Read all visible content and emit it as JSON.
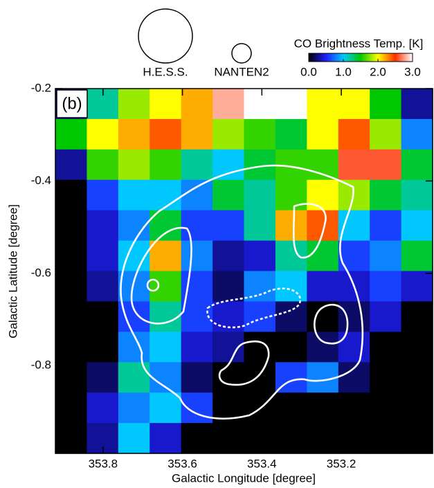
{
  "chart_data": {
    "type": "heatmap",
    "panel_label": "(b)",
    "xlabel": "Galactic Longitude [degree]",
    "ylabel": "Galactic Latitude [degree]",
    "colorbar_title": "CO Brightness Temp. [K]",
    "beams": [
      "H.E.S.S.",
      "NANTEN2"
    ],
    "xlim": [
      353.92,
      352.97
    ],
    "ylim": [
      -0.99,
      -0.2
    ],
    "xticks": [
      353.8,
      353.6,
      353.4,
      353.2
    ],
    "yticks": [
      -0.2,
      -0.4,
      -0.6,
      -0.8
    ],
    "clim": [
      0,
      3
    ],
    "cticks": [
      {
        "value": 0,
        "label": "0.0"
      },
      {
        "value": 1,
        "label": "1.0"
      },
      {
        "value": 2,
        "label": "2.0"
      },
      {
        "value": 3,
        "label": "3.0"
      }
    ],
    "colorscale": [
      "#000000",
      "#1e1eff",
      "#00c8ff",
      "#00c800",
      "#ffff00",
      "#ff3000",
      "#ffffff"
    ],
    "z": [
      [
        0.3,
        1.2,
        1.8,
        2.0,
        2.2,
        2.8,
        3.0,
        3.0,
        2.0,
        2.0,
        1.5,
        0.3
      ],
      [
        1.5,
        2.0,
        2.2,
        2.4,
        2.2,
        1.8,
        1.6,
        1.4,
        2.0,
        2.4,
        1.8,
        0.8
      ],
      [
        0.3,
        1.6,
        1.8,
        1.6,
        1.2,
        1.0,
        1.4,
        1.6,
        1.6,
        2.6,
        2.6,
        1.4
      ],
      [
        0.0,
        0.6,
        1.0,
        1.0,
        0.8,
        1.4,
        1.2,
        1.6,
        2.0,
        1.8,
        1.4,
        1.2
      ],
      [
        0.0,
        0.4,
        0.8,
        1.4,
        0.6,
        0.6,
        1.2,
        2.2,
        2.4,
        1.0,
        0.6,
        1.0
      ],
      [
        0.0,
        0.4,
        1.0,
        2.2,
        0.8,
        0.3,
        0.4,
        1.2,
        1.4,
        0.6,
        0.8,
        1.4
      ],
      [
        0.0,
        0.3,
        0.8,
        1.6,
        0.6,
        0.2,
        0.8,
        1.0,
        0.4,
        0.4,
        0.6,
        0.4
      ],
      [
        0.0,
        0.0,
        0.6,
        1.2,
        0.6,
        0.4,
        0.6,
        0.2,
        0.0,
        0.2,
        0.4,
        0.0
      ],
      [
        0.0,
        0.0,
        0.8,
        1.0,
        0.4,
        0.3,
        0.0,
        0.0,
        0.2,
        0.4,
        0.0,
        0.0
      ],
      [
        0.0,
        0.2,
        1.2,
        0.8,
        0.2,
        0.0,
        0.0,
        0.6,
        0.8,
        0.2,
        0.0,
        0.0
      ],
      [
        0.0,
        0.4,
        0.8,
        1.0,
        0.6,
        0.0,
        0.0,
        0.0,
        0.0,
        0.0,
        0.0,
        0.0
      ],
      [
        0.0,
        0.3,
        1.0,
        0.4,
        0.0,
        0.0,
        0.0,
        0.0,
        0.0,
        0.0,
        0.0,
        0.0
      ]
    ]
  }
}
